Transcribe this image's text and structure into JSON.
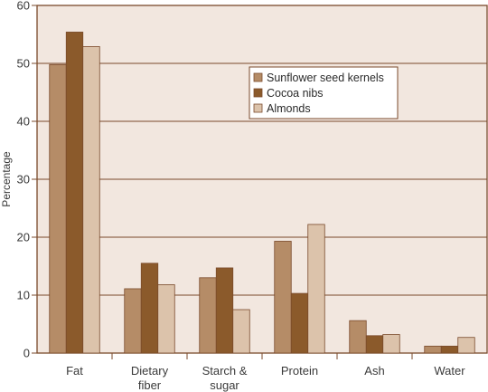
{
  "chart_data": {
    "type": "bar",
    "title": "",
    "xlabel": "",
    "ylabel": "Percentage",
    "ylim": [
      0,
      60
    ],
    "yticks": [
      0,
      10,
      20,
      30,
      40,
      50,
      60
    ],
    "grid": true,
    "legend_position": "top-right",
    "categories": [
      "Fat",
      "Dietary fiber",
      "Starch & sugar",
      "Protein",
      "Ash",
      "Water"
    ],
    "category_lines": [
      [
        "Fat"
      ],
      [
        "Dietary",
        "fiber"
      ],
      [
        "Starch &",
        "sugar"
      ],
      [
        "Protein"
      ],
      [
        "Ash"
      ],
      [
        "Water"
      ]
    ],
    "series": [
      {
        "name": "Sunflower seed kernels",
        "color": "#b58c67",
        "values": [
          49.8,
          11.1,
          13.0,
          19.3,
          5.6,
          1.2
        ]
      },
      {
        "name": "Cocoa nibs",
        "color": "#8b5a2b",
        "values": [
          55.4,
          15.5,
          14.7,
          10.3,
          3.0,
          1.2
        ]
      },
      {
        "name": "Almonds",
        "color": "#dcc3ab",
        "values": [
          52.9,
          11.8,
          7.5,
          22.2,
          3.2,
          2.7
        ]
      }
    ],
    "colors": {
      "background": "#f2e7df",
      "frame": "#7a4a2b",
      "gridline": "#7a4a2b",
      "bar_outline": "#7a4a2b",
      "text": "#3a3a3a"
    }
  }
}
